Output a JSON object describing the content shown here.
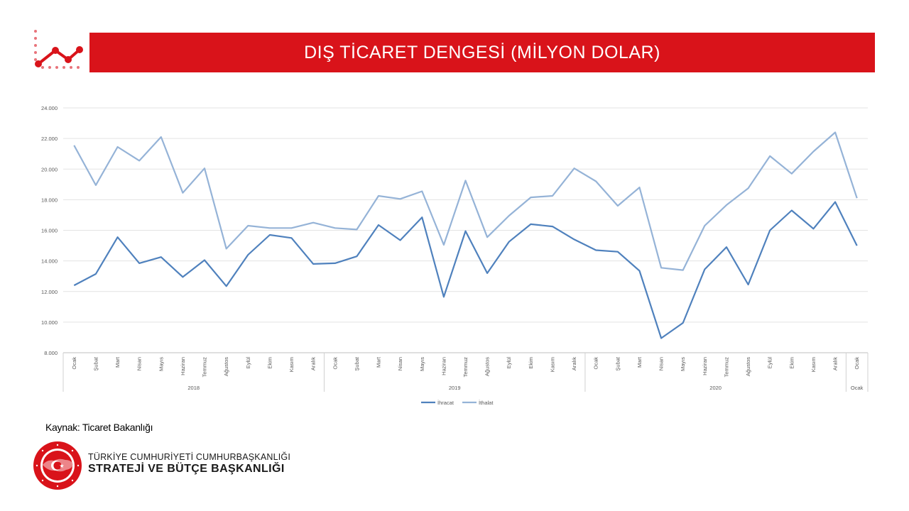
{
  "header": {
    "title": "DIŞ TİCARET DENGESİ (MİLYON DOLAR)"
  },
  "footer": {
    "source": "Kaynak: Ticaret Bakanlığı",
    "org_line1": "TÜRKİYE CUMHURİYETİ CUMHURBAŞKANLIĞI",
    "org_line2": "STRATEJİ VE BÜTÇE BAŞKANLIĞI"
  },
  "colors": {
    "brand_red": "#d9131a",
    "ihracat": "#4f81bd",
    "ithalat": "#95b3d7"
  },
  "chart_data": {
    "type": "line",
    "categories": [
      "Ocak",
      "Şubat",
      "Mart",
      "Nisan",
      "Mayıs",
      "Haziran",
      "Temmuz",
      "Ağustos",
      "Eylül",
      "Ekim",
      "Kasım",
      "Aralık",
      "Ocak",
      "Şubat",
      "Mart",
      "Nisan",
      "Mayıs",
      "Haziran",
      "Temmuz",
      "Ağustos",
      "Eylül",
      "Ekim",
      "Kasım",
      "Aralık",
      "Ocak",
      "Şubat",
      "Mart",
      "Nisan",
      "Mayıs",
      "Haziran",
      "Temmuz",
      "Ağustos",
      "Eylül",
      "Ekim",
      "Kasım",
      "Aralık",
      "Ocak"
    ],
    "groups": [
      {
        "label": "2018",
        "count": 12
      },
      {
        "label": "2019",
        "count": 12
      },
      {
        "label": "2020",
        "count": 12
      },
      {
        "label": "Ocak",
        "count": 1
      }
    ],
    "series": [
      {
        "name": "İhracat",
        "values": [
          12400,
          13150,
          15550,
          13850,
          14250,
          12950,
          14050,
          12350,
          14400,
          15700,
          15500,
          13800,
          13850,
          14300,
          16350,
          15350,
          16850,
          11650,
          15950,
          13200,
          15250,
          16400,
          16250,
          15400,
          14700,
          14600,
          13350,
          8950,
          9950,
          13450,
          14900,
          12450,
          16000,
          17300,
          16100,
          17850,
          15000
        ]
      },
      {
        "name": "İthalat",
        "values": [
          21550,
          18950,
          21450,
          20550,
          22100,
          18450,
          20050,
          14800,
          16300,
          16150,
          16150,
          16500,
          16150,
          16050,
          18250,
          18050,
          18550,
          15050,
          19250,
          15550,
          16950,
          18150,
          18250,
          20050,
          19200,
          17600,
          18800,
          13550,
          13400,
          16300,
          17650,
          18750,
          20850,
          19700,
          21150,
          22400,
          18100
        ]
      }
    ],
    "yticks": [
      "8.000",
      "10.000",
      "12.000",
      "14.000",
      "16.000",
      "18.000",
      "20.000",
      "22.000",
      "24.000"
    ],
    "ylim": [
      8000,
      24000
    ],
    "grid": true,
    "legend": "bottom-center",
    "xlabel": "",
    "ylabel": ""
  }
}
